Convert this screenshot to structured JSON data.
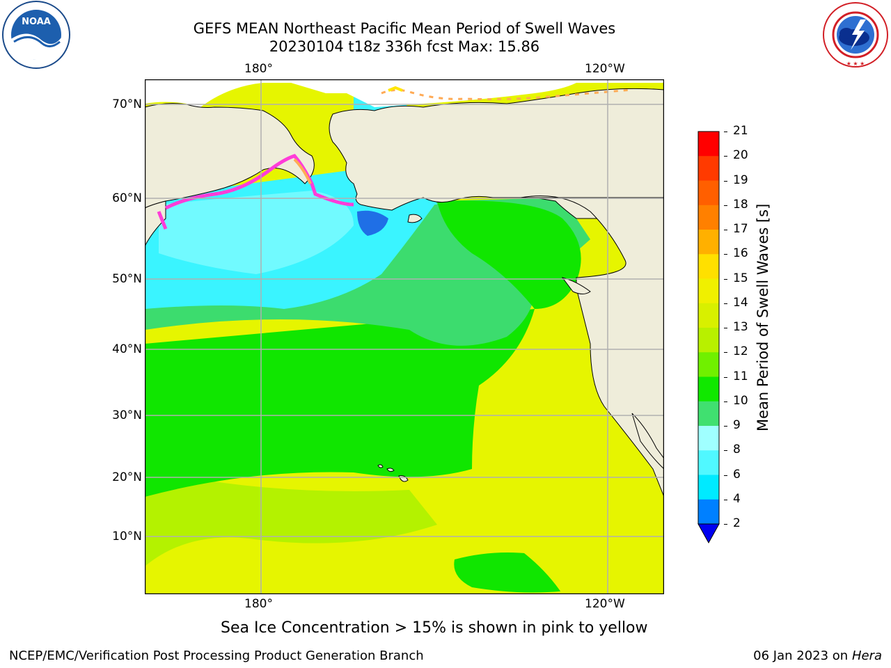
{
  "title": {
    "line1": "GEFS MEAN Northeast Pacific Mean Period of Swell Waves",
    "line2": "20230104 t18z 336h fcst   Max: 15.86"
  },
  "logos": {
    "left_text": "NOAA",
    "left_ring_text": "NATIONAL OCEANIC AND ATMOSPHERIC ADMINISTRATION · U.S. DEPARTMENT OF COMMERCE",
    "right_ring_text": "NATIONAL WEATHER SERVICE"
  },
  "map": {
    "lon_labels": [
      "180°",
      "120°W"
    ],
    "lat_labels": [
      "70°N",
      "60°N",
      "50°N",
      "40°N",
      "30°N",
      "20°N",
      "10°N"
    ],
    "colors": {
      "land": "#efedda",
      "ocean_light": "#9effff",
      "ocean_cyan": "#3af4ff",
      "ocean_green_light": "#3cdc6e",
      "ocean_green": "#10e600",
      "ocean_yellowgreen": "#b4f200",
      "ocean_yellow": "#e6f500",
      "ice_pink": "#ff3cd8",
      "ice_orange": "#ffaa55",
      "ice_yellow": "#ffe600",
      "grid": "#b0b0b0"
    }
  },
  "colorbar": {
    "title": "Mean Period of Swell Waves [s]",
    "ticks": [
      "21",
      "20",
      "19",
      "18",
      "17",
      "16",
      "15",
      "14",
      "13",
      "12",
      "11",
      "10",
      "9",
      "8",
      "6",
      "4",
      "2"
    ],
    "colors": [
      "#ff0000",
      "#ff3a00",
      "#ff5f00",
      "#ff8000",
      "#ffb000",
      "#ffe000",
      "#f0f000",
      "#d8f000",
      "#b8f000",
      "#70f000",
      "#10e800",
      "#40e070",
      "#a0ffff",
      "#50f8ff",
      "#00eaff",
      "#0080ff"
    ],
    "extend_color": "#0000f0"
  },
  "caption": "Sea Ice Concentration > 15% is shown in pink to yellow",
  "footer": {
    "left": "NCEP/EMC/Verification Post Processing Product Generation Branch",
    "right_date": "06 Jan 2023 on ",
    "right_machine": "Hera"
  }
}
